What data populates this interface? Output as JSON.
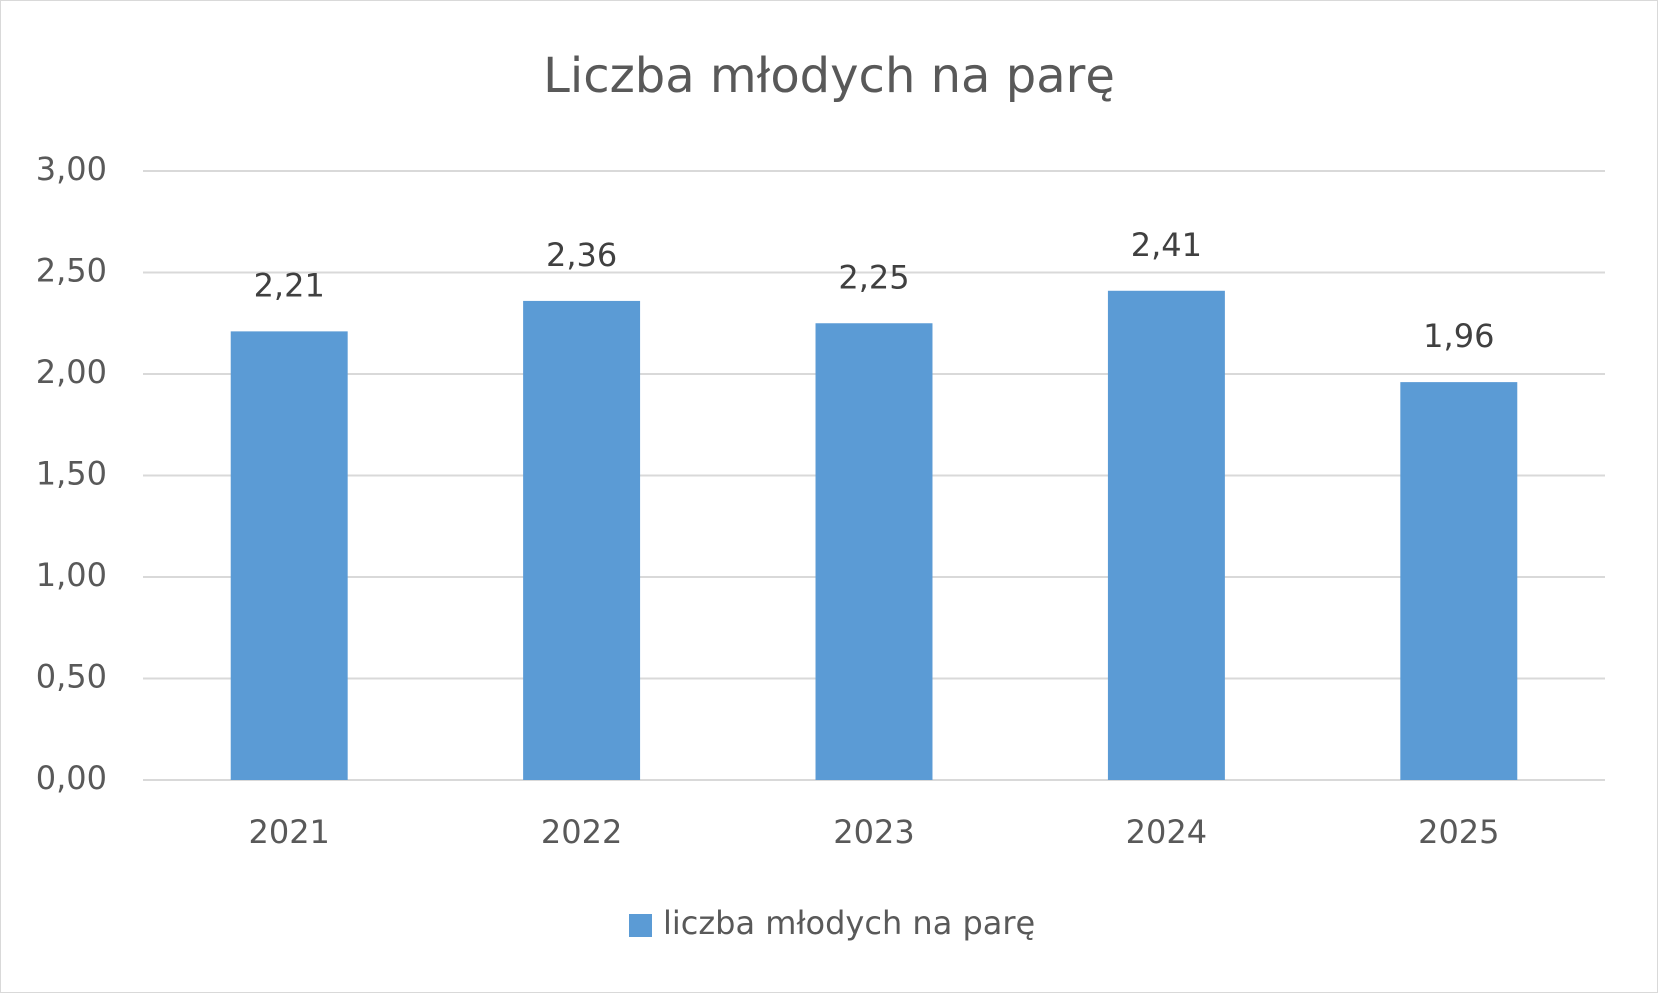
{
  "chart_data": {
    "type": "bar",
    "title": "Liczba młodych na parę",
    "categories": [
      "2021",
      "2022",
      "2023",
      "2024",
      "2025"
    ],
    "series": [
      {
        "name": "liczba młodych na parę",
        "color": "#5b9bd5",
        "values": [
          2.21,
          2.36,
          2.25,
          2.41,
          1.96
        ],
        "value_labels": [
          "2,21",
          "2,36",
          "2,25",
          "2,41",
          "1,96"
        ]
      }
    ],
    "ylim": [
      0,
      3
    ],
    "yticks": [
      {
        "value": 0,
        "label": "0,00"
      },
      {
        "value": 0.5,
        "label": "0,50"
      },
      {
        "value": 1,
        "label": "1,00"
      },
      {
        "value": 1.5,
        "label": "1,50"
      },
      {
        "value": 2,
        "label": "2,00"
      },
      {
        "value": 2.5,
        "label": "2,50"
      },
      {
        "value": 3,
        "label": "3,00"
      }
    ],
    "grid": true,
    "legend": "bottom"
  }
}
